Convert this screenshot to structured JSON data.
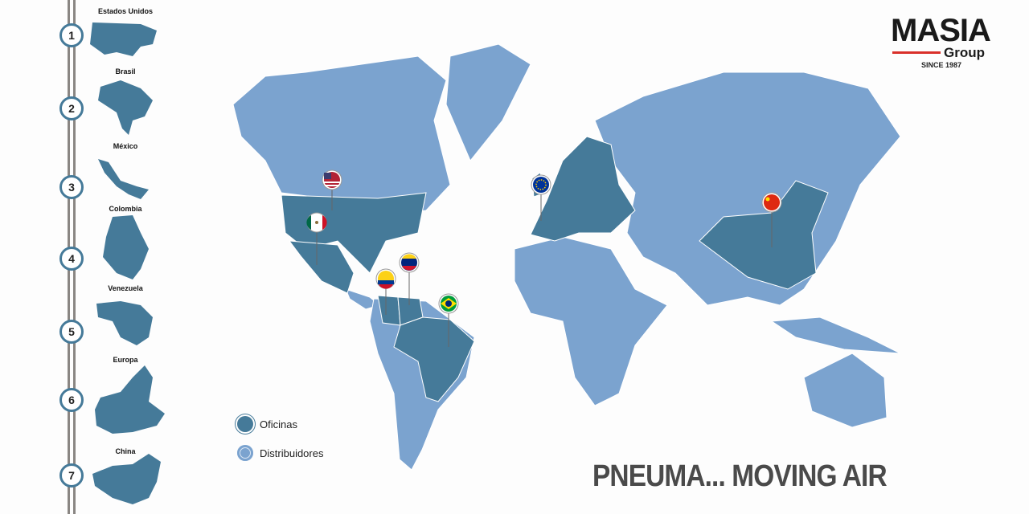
{
  "sidebar": {
    "items": [
      {
        "number": "1",
        "label": "Estados Unidos"
      },
      {
        "number": "2",
        "label": "Brasil"
      },
      {
        "number": "3",
        "label": "México"
      },
      {
        "number": "4",
        "label": "Colombia"
      },
      {
        "number": "5",
        "label": "Venezuela"
      },
      {
        "number": "6",
        "label": "Europa"
      },
      {
        "number": "7",
        "label": "China"
      }
    ]
  },
  "logo": {
    "name": "MASIA",
    "sub": "Group",
    "since": "SINCE 1987"
  },
  "legend": {
    "offices": "Oficinas",
    "distributors": "Distribuidores"
  },
  "tagline": "PNEUMA... MOVING AIR",
  "colors": {
    "offices": "#457a99",
    "distributors": "#7ba3cf",
    "accent": "#d9302a"
  },
  "pins": [
    "usa-flag-icon",
    "mexico-flag-icon",
    "colombia-flag-icon",
    "venezuela-flag-icon",
    "brazil-flag-icon",
    "eu-flag-icon",
    "china-flag-icon"
  ]
}
